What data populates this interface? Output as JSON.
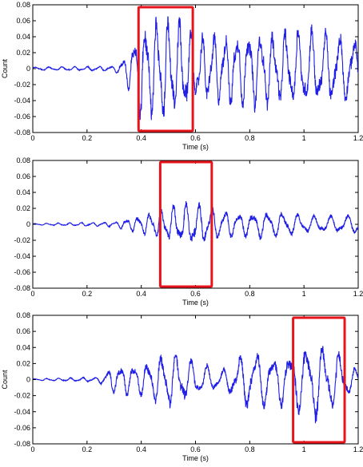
{
  "chart_data": [
    {
      "type": "line",
      "xlabel": "Time (s)",
      "ylabel": "Count",
      "xlim": [
        0,
        1.2
      ],
      "ylim": [
        -0.08,
        0.08
      ],
      "x_ticks": [
        "0",
        "0.2",
        "0.4",
        "0.6",
        "0.8",
        "1",
        "1.2"
      ],
      "y_ticks": [
        "0.08",
        "0.06",
        "0.04",
        "0.02",
        "0",
        "-0.02",
        "-0.04",
        "-0.06",
        "-0.08"
      ],
      "highlight_window": {
        "x": [
          0.39,
          0.59
        ],
        "y": [
          -0.078,
          0.077
        ],
        "color": "#e8141b"
      },
      "signal": {
        "onset": 0.33,
        "peak_amplitude": 0.068,
        "envelope": [
          [
            0,
            0.002
          ],
          [
            0.3,
            0.003
          ],
          [
            0.34,
            0.015
          ],
          [
            0.4,
            0.06
          ],
          [
            0.48,
            0.068
          ],
          [
            0.56,
            0.06
          ],
          [
            0.6,
            0.04
          ],
          [
            0.7,
            0.045
          ],
          [
            0.8,
            0.05
          ],
          [
            0.9,
            0.045
          ],
          [
            1.0,
            0.05
          ],
          [
            1.1,
            0.045
          ],
          [
            1.2,
            0.04
          ]
        ],
        "color": "#1e1ee6"
      }
    },
    {
      "type": "line",
      "xlabel": "Time (s)",
      "ylabel": "",
      "xlim": [
        0,
        1.2
      ],
      "ylim": [
        -0.08,
        0.08
      ],
      "x_ticks": [
        "0",
        "0.2",
        "0.4",
        "0.6",
        "0.8",
        "1",
        "1.2"
      ],
      "y_ticks": [
        "0.08",
        "0.06",
        "0.04",
        "0.02",
        "0",
        "-0.02",
        "-0.04",
        "-0.06",
        "-0.08"
      ],
      "highlight_window": {
        "x": [
          0.47,
          0.66
        ],
        "y": [
          -0.078,
          0.078
        ],
        "color": "#e8141b"
      },
      "signal": {
        "onset": 0.3,
        "peak_amplitude": 0.028,
        "envelope": [
          [
            0,
            0.001
          ],
          [
            0.3,
            0.003
          ],
          [
            0.4,
            0.012
          ],
          [
            0.5,
            0.022
          ],
          [
            0.6,
            0.028
          ],
          [
            0.65,
            0.022
          ],
          [
            0.75,
            0.015
          ],
          [
            0.85,
            0.018
          ],
          [
            0.95,
            0.014
          ],
          [
            1.05,
            0.01
          ],
          [
            1.2,
            0.012
          ]
        ],
        "color": "#1e1ee6"
      }
    },
    {
      "type": "line",
      "xlabel": "Time (s)",
      "ylabel": "Count",
      "xlim": [
        0,
        1.2
      ],
      "ylim": [
        -0.08,
        0.08
      ],
      "x_ticks": [
        "0",
        "0.2",
        "0.4",
        "0.6",
        "0.8",
        "1",
        "1.2"
      ],
      "y_ticks": [
        "0.08",
        "0.06",
        "0.04",
        "0.02",
        "0",
        "-0.02",
        "-0.04",
        "-0.06",
        "-0.08"
      ],
      "highlight_window": {
        "x": [
          0.96,
          1.15
        ],
        "y": [
          -0.078,
          0.077
        ],
        "color": "#e8141b"
      },
      "signal": {
        "onset": 0.25,
        "peak_amplitude": 0.05,
        "envelope": [
          [
            0,
            0.001
          ],
          [
            0.24,
            0.003
          ],
          [
            0.3,
            0.018
          ],
          [
            0.4,
            0.02
          ],
          [
            0.5,
            0.036
          ],
          [
            0.6,
            0.022
          ],
          [
            0.7,
            0.012
          ],
          [
            0.8,
            0.04
          ],
          [
            0.9,
            0.03
          ],
          [
            1.0,
            0.042
          ],
          [
            1.05,
            0.05
          ],
          [
            1.12,
            0.035
          ],
          [
            1.2,
            0.01
          ]
        ],
        "color": "#1e1ee6"
      }
    }
  ]
}
